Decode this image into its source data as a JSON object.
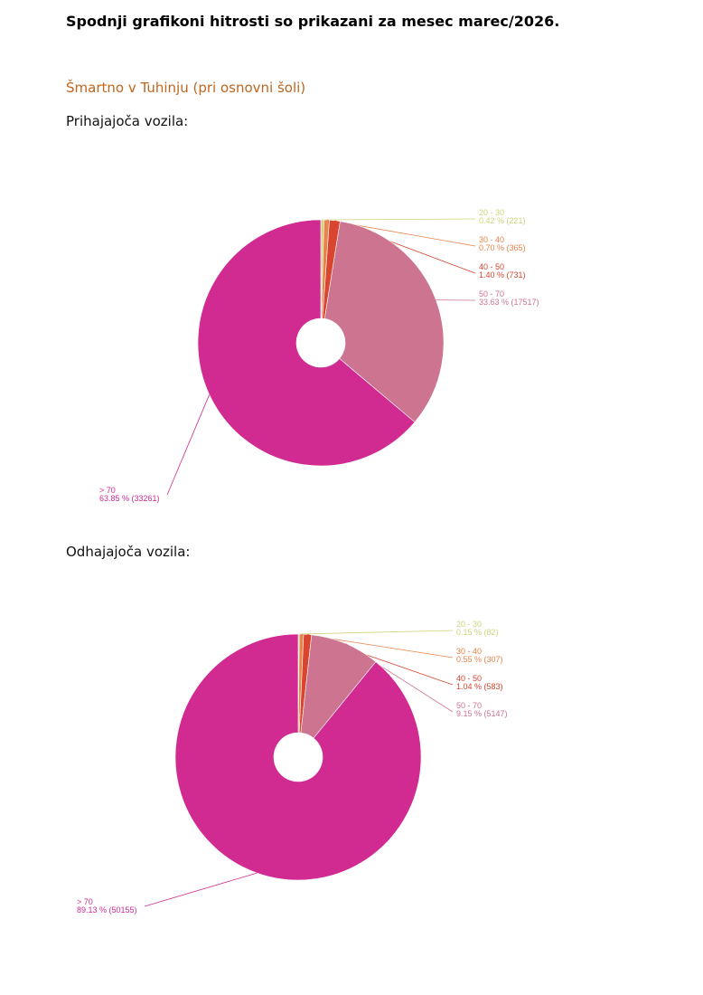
{
  "header": {
    "title": "Spodnji grafikoni hitrosti so prikazani za mesec marec/2026."
  },
  "location": "Šmartno v Tuhinju (pri osnovni šoli)",
  "chart_data": [
    {
      "type": "pie",
      "title": "Prihajajoča vozila:",
      "categories": [
        "20 - 30",
        "30 - 40",
        "40 - 50",
        "50 - 70",
        "> 70"
      ],
      "values": [
        0.42,
        0.7,
        1.4,
        33.63,
        63.85
      ],
      "value_labels": [
        "0.42 % (221)",
        "0.70 % (365)",
        "1.40 % (731)",
        "33.63 % (17517)",
        "63.85 % (33261)"
      ],
      "colors": [
        "#cfd27a",
        "#e8834a",
        "#d9452f",
        "#cc7490",
        "#d12b92"
      ]
    },
    {
      "type": "pie",
      "title": "Odhajajoča vozila:",
      "categories": [
        "20 - 30",
        "30 - 40",
        "40 - 50",
        "50 - 70",
        "> 70"
      ],
      "values": [
        0.15,
        0.55,
        1.04,
        9.15,
        89.13
      ],
      "value_labels": [
        "0.15 % (82)",
        "0.55 % (307)",
        "1.04 % (583)",
        "9.15 % (5147)",
        "89.13 % (50155)"
      ],
      "colors": [
        "#cfd27a",
        "#e8834a",
        "#d9452f",
        "#cc7490",
        "#d12b92"
      ]
    }
  ]
}
